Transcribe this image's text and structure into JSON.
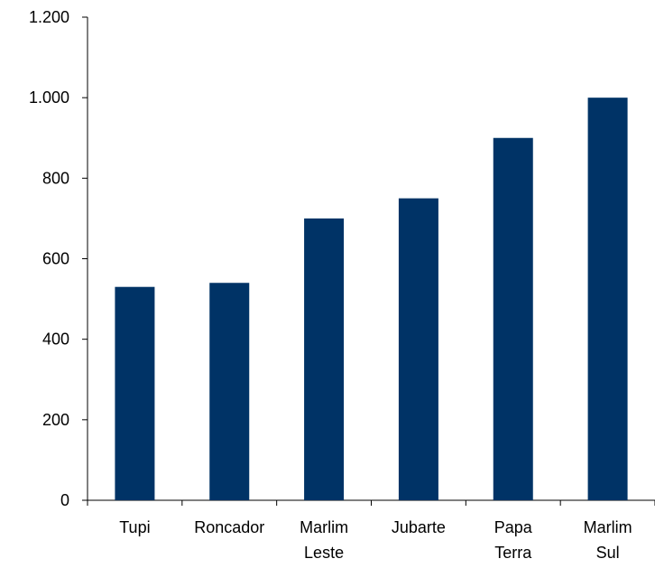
{
  "chart_data": {
    "type": "bar",
    "categories": [
      [
        "Tupi"
      ],
      [
        "Roncador"
      ],
      [
        "Marlim",
        "Leste"
      ],
      [
        "Jubarte"
      ],
      [
        "Papa",
        "Terra"
      ],
      [
        "Marlim",
        "Sul"
      ]
    ],
    "values": [
      530,
      540,
      700,
      750,
      900,
      1000
    ],
    "ylim": [
      0,
      1200
    ],
    "yticks": [
      0,
      200,
      400,
      600,
      800,
      1000,
      1200
    ],
    "ytick_labels": [
      "0",
      "200",
      "400",
      "600",
      "800",
      "1.000",
      "1.200"
    ],
    "grid": false,
    "bar_color": "#003366",
    "axis_color": "#000000"
  }
}
